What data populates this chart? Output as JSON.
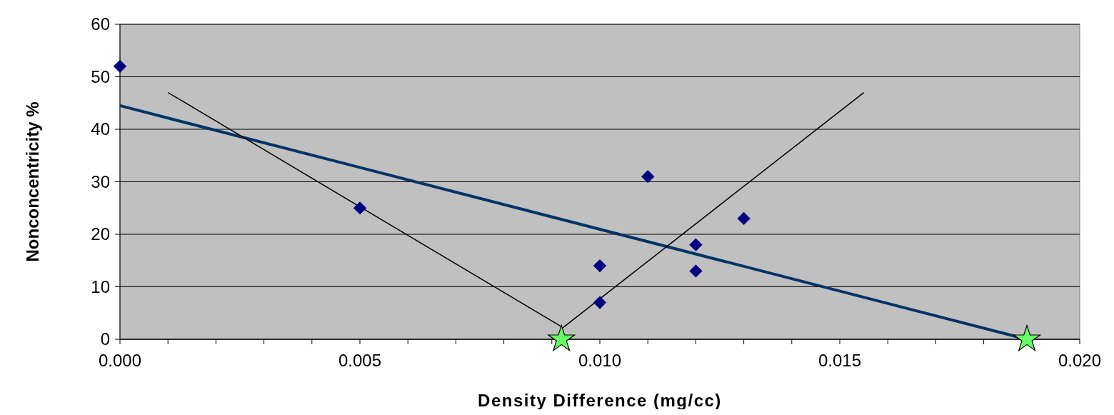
{
  "chart_data": {
    "type": "scatter",
    "xlabel": "Density Difference (mg/cc)",
    "ylabel": "Nonconcentricity %",
    "xlim": [
      0,
      0.02
    ],
    "ylim": [
      0,
      60
    ],
    "xticks": [
      {
        "value": 0,
        "label": "0.000"
      },
      {
        "value": 0.001,
        "label": null
      },
      {
        "value": 0.002,
        "label": null
      },
      {
        "value": 0.003,
        "label": null
      },
      {
        "value": 0.004,
        "label": null
      },
      {
        "value": 0.005,
        "label": "0.005"
      },
      {
        "value": 0.006,
        "label": null
      },
      {
        "value": 0.007,
        "label": null
      },
      {
        "value": 0.008,
        "label": null
      },
      {
        "value": 0.009,
        "label": null
      },
      {
        "value": 0.01,
        "label": "0.010"
      },
      {
        "value": 0.011,
        "label": null
      },
      {
        "value": 0.012,
        "label": null
      },
      {
        "value": 0.013,
        "label": null
      },
      {
        "value": 0.014,
        "label": null
      },
      {
        "value": 0.015,
        "label": "0.015"
      },
      {
        "value": 0.016,
        "label": null
      },
      {
        "value": 0.017,
        "label": null
      },
      {
        "value": 0.018,
        "label": null
      },
      {
        "value": 0.019,
        "label": null
      },
      {
        "value": 0.02,
        "label": "0.020"
      }
    ],
    "yticks": [
      0,
      10,
      20,
      30,
      40,
      50,
      60
    ],
    "grid": "y",
    "series": [
      {
        "type": "line",
        "color": "#003366",
        "x": [
          0,
          0.0189
        ],
        "values": [
          44.5,
          0
        ]
      },
      {
        "type": "line",
        "color": "#000000",
        "x": [
          0.001,
          0.0092
        ],
        "values": [
          47,
          2.4
        ]
      },
      {
        "type": "line",
        "color": "#000000",
        "x": [
          0.0092,
          0.0155
        ],
        "values": [
          2,
          47
        ]
      },
      {
        "color": "#000080",
        "x": [
          0,
          0.005,
          0.01,
          0.01,
          0.011,
          0.012,
          0.012,
          0.013
        ],
        "values": [
          52,
          25,
          14,
          7,
          31,
          18,
          13,
          23
        ],
        "marker": "diamond"
      },
      {
        "color": "#66ff66",
        "x": [
          0.0092,
          0.0189
        ],
        "values": [
          0,
          0
        ],
        "marker": "star"
      }
    ]
  }
}
